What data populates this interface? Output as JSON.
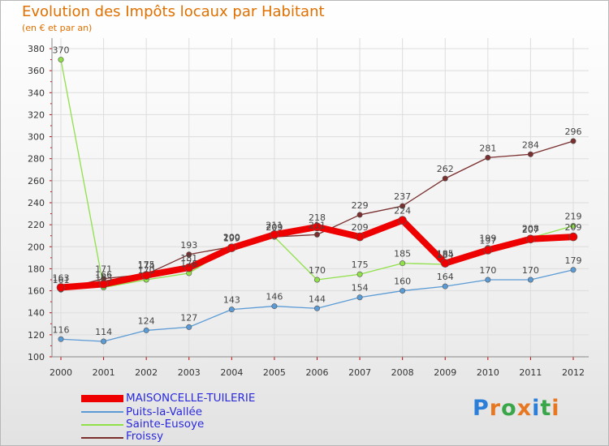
{
  "title": "Evolution des Impôts locaux par Habitant",
  "subtitle": "(en € et par an)",
  "logo": "Proxiti",
  "chart_data": {
    "type": "line",
    "title": "Evolution des Impôts locaux par Habitant",
    "ylabel": "(en € et par an)",
    "xlabel": "",
    "ylim": [
      100,
      380
    ],
    "ytick_step": 20,
    "x": [
      "2000",
      "2001",
      "2002",
      "2003",
      "2004",
      "2005",
      "2006",
      "2007",
      "2008",
      "2009",
      "2010",
      "2011",
      "2012"
    ],
    "series": [
      {
        "name": "MAISONCELLE-TUILERIE",
        "color": "#ee0000",
        "labelColor": "#444444",
        "values": [
          163,
          166,
          174,
          181,
          199,
          211,
          218,
          209,
          224,
          185,
          197,
          207,
          209
        ]
      },
      {
        "name": "Puits-la-Vallée",
        "color": "#5b9bd5",
        "labelColor": "#444444",
        "values": [
          116,
          114,
          124,
          127,
          143,
          146,
          144,
          154,
          160,
          164,
          170,
          170,
          179
        ]
      },
      {
        "name": "Sainte-Eusoye",
        "color": "#90e04a",
        "labelColor": "#444444",
        "values": [
          370,
          163,
          170,
          176,
          200,
          209,
          170,
          175,
          185,
          184,
          199,
          208,
          219
        ]
      },
      {
        "name": "Froissy",
        "color": "#7a2e2e",
        "labelColor": "#444444",
        "values": [
          161,
          171,
          175,
          193,
          200,
          209,
          211,
          229,
          237,
          262,
          281,
          284,
          296
        ]
      }
    ]
  }
}
